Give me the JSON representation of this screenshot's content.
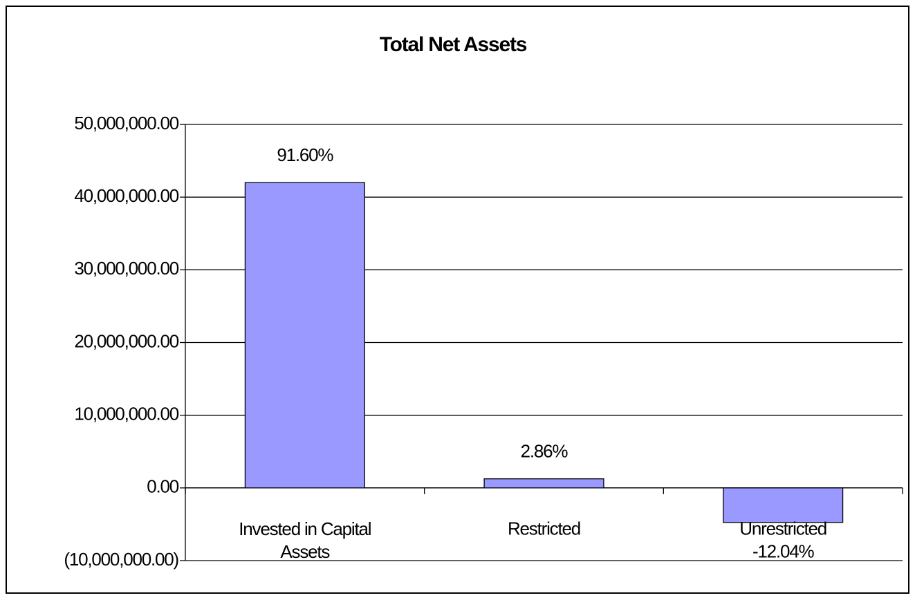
{
  "chart_data": {
    "type": "bar",
    "title": "Total Net Assets",
    "categories": [
      "Invested in Capital Assets",
      "Restricted",
      "Unrestricted"
    ],
    "values": [
      42000000,
      1250000,
      -4750000
    ],
    "data_labels": [
      "91.60%",
      "2.86%",
      "-12.04%"
    ],
    "color": "#9999ff",
    "ylim": [
      -10000000,
      50000000
    ],
    "yticks": [
      {
        "value": -10000000,
        "label": "(10,000,000.00)"
      },
      {
        "value": 0,
        "label": "0.00"
      },
      {
        "value": 10000000,
        "label": "10,000,000.00"
      },
      {
        "value": 20000000,
        "label": "20,000,000.00"
      },
      {
        "value": 30000000,
        "label": "30,000,000.00"
      },
      {
        "value": 40000000,
        "label": "40,000,000.00"
      },
      {
        "value": 50000000,
        "label": "50,000,000.00"
      }
    ],
    "grid": true
  }
}
